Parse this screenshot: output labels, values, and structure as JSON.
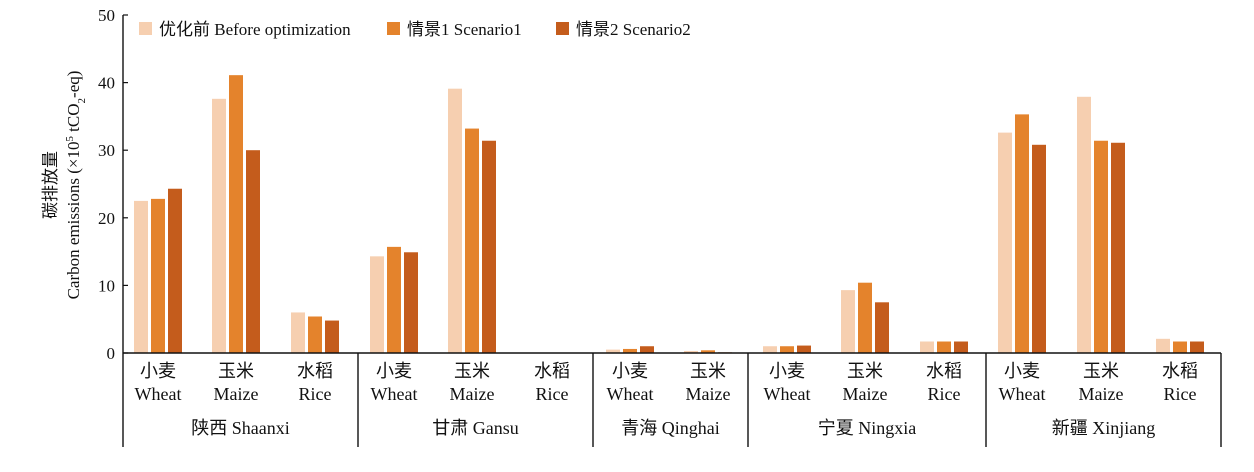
{
  "chart_data": {
    "type": "bar",
    "ylabel_cn": "碳排放量",
    "ylabel_en_prefix": "Carbon emissions (×10",
    "ylabel_en_sup": "5",
    "ylabel_en_mid": " tCO",
    "ylabel_en_sub": "2",
    "ylabel_en_suffix": "-eq)",
    "ylim": [
      0,
      50
    ],
    "yticks": [
      0,
      10,
      20,
      30,
      40,
      50
    ],
    "legend_position": "top-left",
    "series": [
      {
        "name": "优化前 Before optimization",
        "color": "#f6cfb0"
      },
      {
        "name": "情景1 Scenario1",
        "color": "#e4832c"
      },
      {
        "name": "情景2 Scenario2",
        "color": "#c45c1c"
      }
    ],
    "provinces": [
      {
        "name": "陕西 Shaanxi",
        "crops": [
          {
            "cn": "小麦",
            "en": "Wheat",
            "values": [
              22.5,
              22.8,
              24.3
            ]
          },
          {
            "cn": "玉米",
            "en": "Maize",
            "values": [
              37.6,
              41.1,
              30.0
            ]
          },
          {
            "cn": "水稻",
            "en": "Rice",
            "values": [
              6.0,
              5.4,
              4.8
            ]
          }
        ]
      },
      {
        "name": "甘肃 Gansu",
        "crops": [
          {
            "cn": "小麦",
            "en": "Wheat",
            "values": [
              14.3,
              15.7,
              14.9
            ]
          },
          {
            "cn": "玉米",
            "en": "Maize",
            "values": [
              39.1,
              33.2,
              31.4
            ]
          },
          {
            "cn": "水稻",
            "en": "Rice",
            "values": [
              0,
              0,
              0
            ]
          }
        ]
      },
      {
        "name": "青海 Qinghai",
        "crops": [
          {
            "cn": "小麦",
            "en": "Wheat",
            "values": [
              0.5,
              0.6,
              1.0
            ]
          },
          {
            "cn": "玉米",
            "en": "Maize",
            "values": [
              0.3,
              0.4,
              0.1
            ]
          }
        ]
      },
      {
        "name": "宁夏 Ningxia",
        "crops": [
          {
            "cn": "小麦",
            "en": "Wheat",
            "values": [
              1.0,
              1.0,
              1.1
            ]
          },
          {
            "cn": "玉米",
            "en": "Maize",
            "values": [
              9.3,
              10.4,
              7.5
            ]
          },
          {
            "cn": "水稻",
            "en": "Rice",
            "values": [
              1.7,
              1.7,
              1.7
            ]
          }
        ]
      },
      {
        "name": "新疆 Xinjiang",
        "crops": [
          {
            "cn": "小麦",
            "en": "Wheat",
            "values": [
              32.6,
              35.3,
              30.8
            ]
          },
          {
            "cn": "玉米",
            "en": "Maize",
            "values": [
              37.9,
              31.4,
              31.1
            ]
          },
          {
            "cn": "水稻",
            "en": "Rice",
            "values": [
              2.1,
              1.7,
              1.7
            ]
          }
        ]
      }
    ]
  }
}
